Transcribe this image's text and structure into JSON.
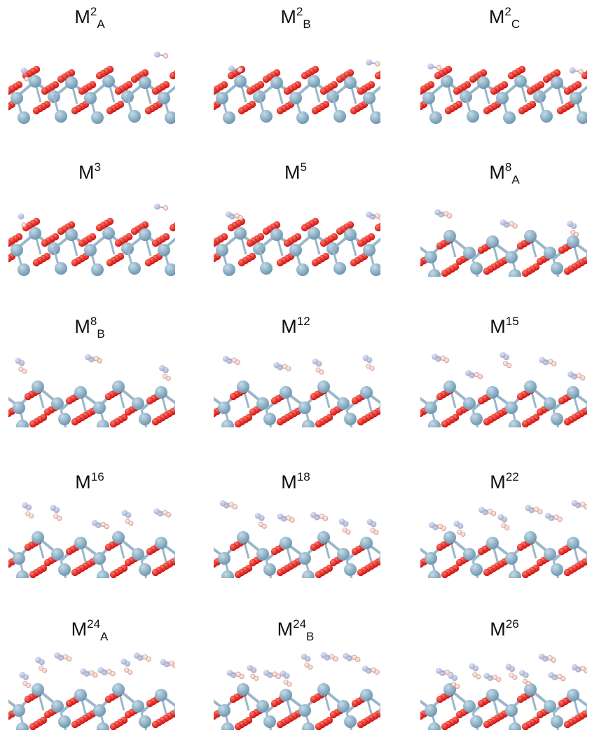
{
  "figure": {
    "panels": [
      {
        "id": "M2A",
        "base": "M",
        "sup": "2",
        "sub": "A",
        "surface": "plain",
        "adsorbates": 2
      },
      {
        "id": "M2B",
        "base": "M",
        "sup": "2",
        "sub": "B",
        "surface": "plain",
        "adsorbates": 2
      },
      {
        "id": "M2C",
        "base": "M",
        "sup": "2",
        "sub": "C",
        "surface": "plain",
        "adsorbates": 2
      },
      {
        "id": "M3",
        "base": "M",
        "sup": "3",
        "sub": "",
        "surface": "plain",
        "adsorbates": 3
      },
      {
        "id": "M5",
        "base": "M",
        "sup": "5",
        "sub": "",
        "surface": "plain",
        "adsorbates": 5
      },
      {
        "id": "M8A",
        "base": "M",
        "sup": "8",
        "sub": "A",
        "surface": "tilted",
        "adsorbates": 8
      },
      {
        "id": "M8B",
        "base": "M",
        "sup": "8",
        "sub": "B",
        "surface": "tilted",
        "adsorbates": 8
      },
      {
        "id": "M12",
        "base": "M",
        "sup": "12",
        "sub": "",
        "surface": "tilted",
        "adsorbates": 12
      },
      {
        "id": "M15",
        "base": "M",
        "sup": "15",
        "sub": "",
        "surface": "tilted",
        "adsorbates": 15
      },
      {
        "id": "M16",
        "base": "M",
        "sup": "16",
        "sub": "",
        "surface": "tilted",
        "adsorbates": 16
      },
      {
        "id": "M18",
        "base": "M",
        "sup": "18",
        "sub": "",
        "surface": "tilted",
        "adsorbates": 18
      },
      {
        "id": "M22",
        "base": "M",
        "sup": "22",
        "sub": "",
        "surface": "tilted",
        "adsorbates": 22
      },
      {
        "id": "M24A",
        "base": "M",
        "sup": "24",
        "sub": "A",
        "surface": "tilted",
        "adsorbates": 24
      },
      {
        "id": "M24B",
        "base": "M",
        "sup": "24",
        "sub": "B",
        "surface": "tilted",
        "adsorbates": 24
      },
      {
        "id": "M26",
        "base": "M",
        "sup": "26",
        "sub": "",
        "surface": "tilted",
        "adsorbates": 26
      }
    ]
  },
  "colors": {
    "metal_atom": "#6f97b0",
    "metal_highlight": "#c4dbe8",
    "oxygen_atom": "#d01010",
    "oxygen_highlight": "#ff7a6a",
    "bond": "#9ab7c9",
    "adsorbate_atom": "#a5acd0",
    "adsorbate_h": "#f0c4bc",
    "label_text": "#111111"
  }
}
